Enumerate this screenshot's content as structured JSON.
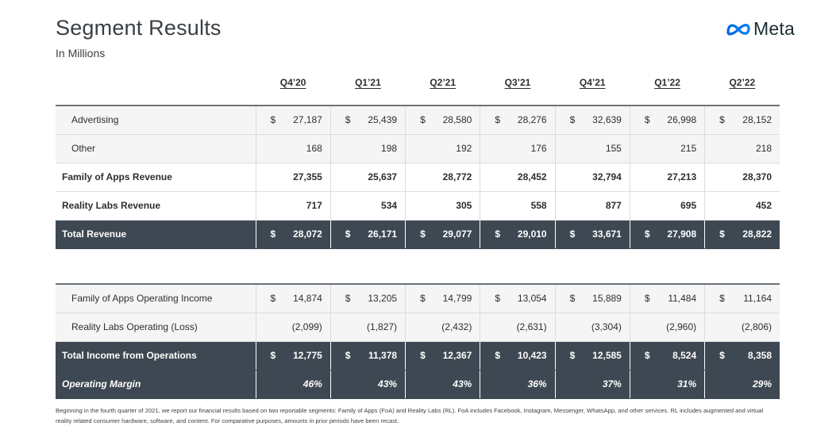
{
  "header": {
    "title": "Segment Results",
    "subtitle": "In Millions",
    "logo_text": "Meta"
  },
  "columns": [
    "Q4’20",
    "Q1’21",
    "Q2’21",
    "Q3’21",
    "Q4’21",
    "Q1’22",
    "Q2’22"
  ],
  "revenue_table": {
    "rows": [
      {
        "label": "Advertising",
        "dollar": true,
        "values": [
          "27,187",
          "25,439",
          "28,580",
          "28,276",
          "32,639",
          "26,998",
          "28,152"
        ]
      },
      {
        "label": "Other",
        "dollar": false,
        "values": [
          "168",
          "198",
          "192",
          "176",
          "155",
          "215",
          "218"
        ]
      },
      {
        "label": "Family of Apps Revenue",
        "dollar": false,
        "values": [
          "27,355",
          "25,637",
          "28,772",
          "28,452",
          "32,794",
          "27,213",
          "28,370"
        ]
      },
      {
        "label": "Reality Labs Revenue",
        "dollar": false,
        "values": [
          "717",
          "534",
          "305",
          "558",
          "877",
          "695",
          "452"
        ]
      },
      {
        "label": "Total Revenue",
        "dollar": true,
        "values": [
          "28,072",
          "26,171",
          "29,077",
          "29,010",
          "33,671",
          "27,908",
          "28,822"
        ]
      }
    ]
  },
  "income_table": {
    "rows": [
      {
        "label": "Family of Apps Operating Income",
        "dollar": true,
        "values": [
          "14,874",
          "13,205",
          "14,799",
          "13,054",
          "15,889",
          "11,484",
          "11,164"
        ]
      },
      {
        "label": "Reality Labs Operating (Loss)",
        "dollar": false,
        "values": [
          "(2,099)",
          "(1,827)",
          "(2,432)",
          "(2,631)",
          "(3,304)",
          "(2,960)",
          "(2,806)"
        ]
      },
      {
        "label": "Total Income from Operations",
        "dollar": true,
        "values": [
          "12,775",
          "11,378",
          "12,367",
          "10,423",
          "12,585",
          "8,524",
          "8,358"
        ]
      },
      {
        "label": "Operating Margin",
        "dollar": false,
        "values": [
          "46%",
          "43%",
          "43%",
          "36%",
          "37%",
          "31%",
          "29%"
        ]
      }
    ]
  },
  "currency_symbol": "$",
  "footnote": "Beginning in the fourth quarter of 2021, we report our financial results based on two reportable segments: Family of Apps (FoA) and Reality Labs (RL). FoA includes Facebook, Instagram, Messenger, WhatsApp, and other services. RL includes augmented and virtual reality related consumer hardware, software, and content. For comparative purposes, amounts in prior periods have been recast.",
  "colors": {
    "dark_row": "#3d4852",
    "light_row": "#f5f5f5",
    "logo_blue": "#0668e1"
  }
}
